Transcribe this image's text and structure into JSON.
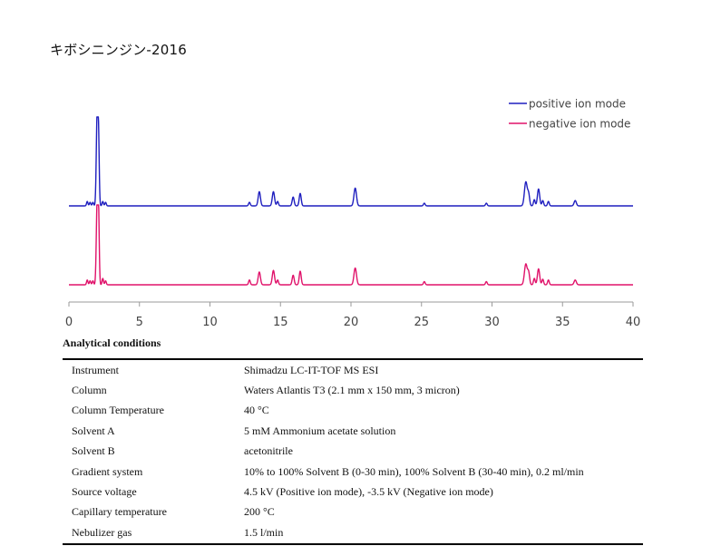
{
  "title": "キボシニンジン-2016",
  "chart_data": {
    "type": "line",
    "title": "キボシニンジン-2016",
    "xlabel": "",
    "ylabel": "",
    "xlim": [
      0,
      40
    ],
    "x_ticks": [
      "0",
      "5",
      "10",
      "15",
      "20",
      "25",
      "30",
      "35",
      "40"
    ],
    "legend_position": "top-right",
    "series": [
      {
        "name": "positive ion mode",
        "color": "#1f1fbf",
        "peaks": [
          {
            "x": 1.3,
            "y": 5,
            "w": 0.05
          },
          {
            "x": 1.5,
            "y": 4,
            "w": 0.05
          },
          {
            "x": 1.7,
            "y": 4,
            "w": 0.05
          },
          {
            "x": 2.0,
            "y": 100,
            "w": 0.06
          },
          {
            "x": 2.1,
            "y": 70,
            "w": 0.05
          },
          {
            "x": 2.4,
            "y": 5,
            "w": 0.05
          },
          {
            "x": 2.6,
            "y": 4,
            "w": 0.05
          },
          {
            "x": 12.8,
            "y": 4,
            "w": 0.06
          },
          {
            "x": 13.5,
            "y": 16,
            "w": 0.08
          },
          {
            "x": 14.5,
            "y": 16,
            "w": 0.08
          },
          {
            "x": 14.8,
            "y": 5,
            "w": 0.06
          },
          {
            "x": 15.9,
            "y": 10,
            "w": 0.07
          },
          {
            "x": 16.4,
            "y": 14,
            "w": 0.07
          },
          {
            "x": 20.3,
            "y": 20,
            "w": 0.09
          },
          {
            "x": 25.2,
            "y": 3,
            "w": 0.06
          },
          {
            "x": 29.6,
            "y": 3,
            "w": 0.06
          },
          {
            "x": 32.4,
            "y": 27,
            "w": 0.1
          },
          {
            "x": 32.6,
            "y": 12,
            "w": 0.07
          },
          {
            "x": 33.0,
            "y": 7,
            "w": 0.06
          },
          {
            "x": 33.3,
            "y": 19,
            "w": 0.08
          },
          {
            "x": 33.6,
            "y": 6,
            "w": 0.06
          },
          {
            "x": 34.0,
            "y": 5,
            "w": 0.06
          },
          {
            "x": 35.9,
            "y": 6,
            "w": 0.08
          }
        ]
      },
      {
        "name": "negative ion mode",
        "color": "#e0126a",
        "peaks": [
          {
            "x": 1.3,
            "y": 6,
            "w": 0.05
          },
          {
            "x": 1.5,
            "y": 5,
            "w": 0.05
          },
          {
            "x": 1.7,
            "y": 5,
            "w": 0.05
          },
          {
            "x": 2.0,
            "y": 100,
            "w": 0.06
          },
          {
            "x": 2.1,
            "y": 85,
            "w": 0.05
          },
          {
            "x": 2.4,
            "y": 8,
            "w": 0.05
          },
          {
            "x": 2.6,
            "y": 5,
            "w": 0.05
          },
          {
            "x": 12.8,
            "y": 6,
            "w": 0.06
          },
          {
            "x": 13.5,
            "y": 16,
            "w": 0.08
          },
          {
            "x": 14.5,
            "y": 18,
            "w": 0.08
          },
          {
            "x": 14.8,
            "y": 6,
            "w": 0.06
          },
          {
            "x": 15.9,
            "y": 12,
            "w": 0.07
          },
          {
            "x": 16.4,
            "y": 17,
            "w": 0.07
          },
          {
            "x": 20.3,
            "y": 21,
            "w": 0.09
          },
          {
            "x": 25.2,
            "y": 4,
            "w": 0.06
          },
          {
            "x": 29.6,
            "y": 4,
            "w": 0.06
          },
          {
            "x": 32.4,
            "y": 26,
            "w": 0.1
          },
          {
            "x": 32.6,
            "y": 14,
            "w": 0.07
          },
          {
            "x": 33.0,
            "y": 8,
            "w": 0.06
          },
          {
            "x": 33.3,
            "y": 20,
            "w": 0.08
          },
          {
            "x": 33.6,
            "y": 7,
            "w": 0.06
          },
          {
            "x": 34.0,
            "y": 6,
            "w": 0.06
          },
          {
            "x": 35.9,
            "y": 6,
            "w": 0.08
          }
        ]
      }
    ]
  },
  "conditions": {
    "heading": "Analytical conditions",
    "rows": [
      {
        "param": "Instrument",
        "value": "Shimadzu LC-IT-TOF MS ESI"
      },
      {
        "param": "Column",
        "value": "Waters Atlantis T3 (2.1 mm x 150 mm, 3 micron)"
      },
      {
        "param": "Column Temperature",
        "value": "40 °C"
      },
      {
        "param": "Solvent A",
        "value": "5 mM Ammonium acetate solution"
      },
      {
        "param": "Solvent B",
        "value": "acetonitrile"
      },
      {
        "param": "Gradient system",
        "value": "10% to 100% Solvent B (0-30 min), 100% Solvent B (30-40 min), 0.2 ml/min"
      },
      {
        "param": "Source voltage",
        "value": "4.5 kV (Positive ion mode), -3.5 kV (Negative ion mode)"
      },
      {
        "param": "Capillary temperature",
        "value": "200 °C"
      },
      {
        "param": "Nebulizer gas",
        "value": "1.5 l/min"
      }
    ]
  }
}
